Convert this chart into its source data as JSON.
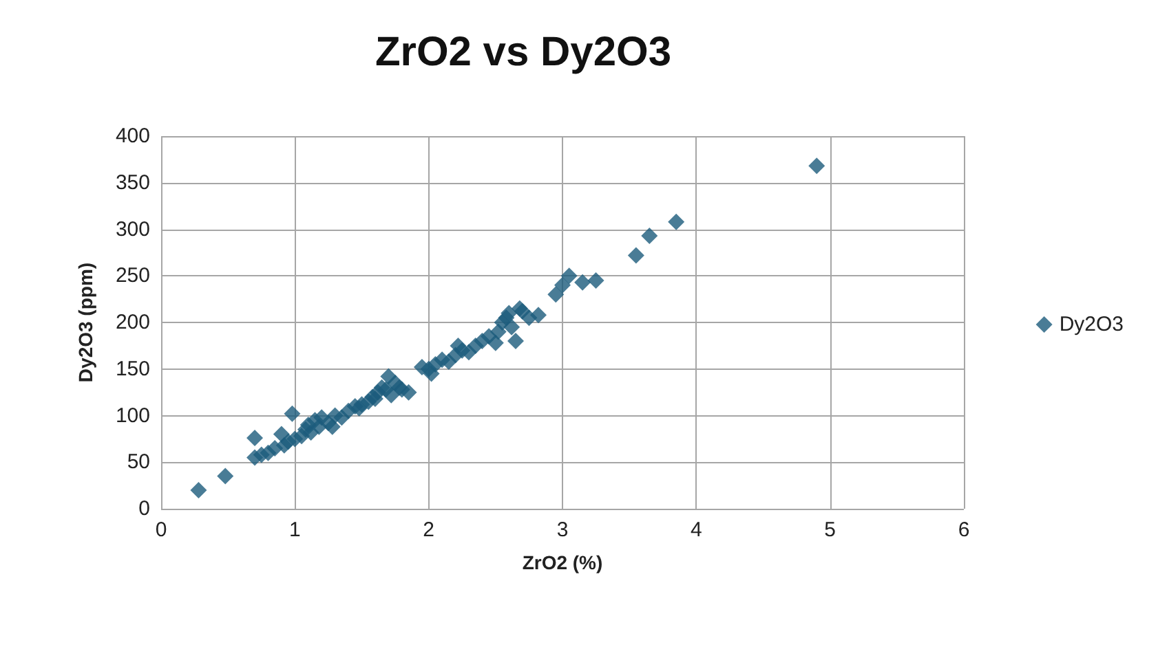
{
  "chart_data": {
    "type": "scatter",
    "title": "ZrO2 vs Dy2O3",
    "xlabel": "ZrO2 (%)",
    "ylabel": "Dy2O3 (ppm)",
    "xlim": [
      0,
      6
    ],
    "xticks": [
      0,
      1,
      2,
      3,
      4,
      5,
      6
    ],
    "ylim": [
      0,
      400
    ],
    "yticks": [
      0,
      50,
      100,
      150,
      200,
      250,
      300,
      350,
      400
    ],
    "grid": true,
    "legend": "right",
    "marker": "diamond",
    "series": [
      {
        "name": "Dy2O3",
        "color": "#1c5b7c",
        "x": [
          0.28,
          0.48,
          0.7,
          0.7,
          0.75,
          0.8,
          0.85,
          0.9,
          0.92,
          0.95,
          0.98,
          1.0,
          1.05,
          1.08,
          1.1,
          1.12,
          1.15,
          1.18,
          1.2,
          1.25,
          1.28,
          1.3,
          1.35,
          1.4,
          1.45,
          1.48,
          1.5,
          1.55,
          1.58,
          1.6,
          1.62,
          1.65,
          1.68,
          1.7,
          1.72,
          1.75,
          1.78,
          1.8,
          1.85,
          1.95,
          2.0,
          2.02,
          2.05,
          2.1,
          2.15,
          2.2,
          2.22,
          2.25,
          2.3,
          2.35,
          2.4,
          2.45,
          2.5,
          2.52,
          2.55,
          2.58,
          2.6,
          2.62,
          2.65,
          2.68,
          2.7,
          2.75,
          2.82,
          2.95,
          3.0,
          3.05,
          3.15,
          3.25,
          3.55,
          3.65,
          3.85,
          4.9
        ],
        "values": [
          20,
          35,
          76,
          55,
          58,
          60,
          65,
          80,
          68,
          72,
          102,
          75,
          78,
          85,
          90,
          82,
          95,
          88,
          98,
          92,
          88,
          100,
          98,
          105,
          110,
          108,
          112,
          115,
          120,
          118,
          125,
          130,
          128,
          142,
          122,
          135,
          130,
          128,
          125,
          152,
          150,
          145,
          155,
          160,
          158,
          165,
          175,
          170,
          168,
          175,
          180,
          185,
          178,
          190,
          200,
          205,
          210,
          195,
          180,
          215,
          212,
          205,
          208,
          230,
          240,
          250,
          243,
          245,
          272,
          293,
          308,
          368
        ]
      }
    ]
  }
}
